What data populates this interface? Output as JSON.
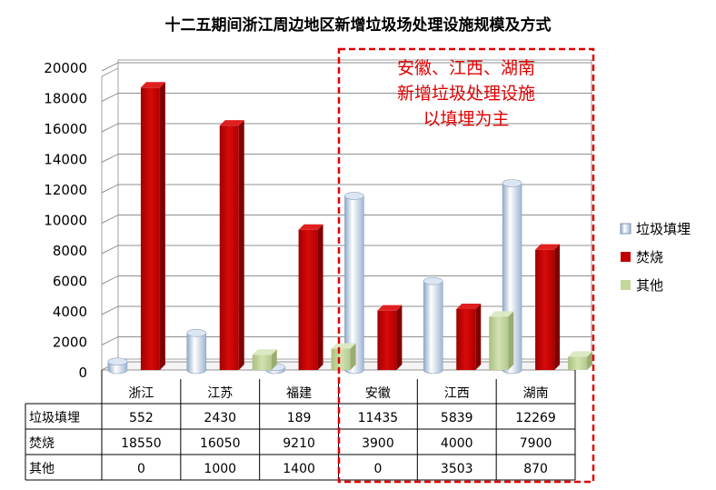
{
  "chart_data": {
    "type": "bar",
    "title": "十二五期间浙江周边地区新增垃圾场处理设施规模及方式",
    "categories": [
      "浙江",
      "江苏",
      "福建",
      "安徽",
      "江西",
      "湖南"
    ],
    "series": [
      {
        "name": "垃圾填埋",
        "values": [
          552,
          2430,
          189,
          11435,
          5839,
          12269
        ],
        "color": "#b8cce4",
        "shape": "cylinder"
      },
      {
        "name": "焚烧",
        "values": [
          18550,
          16050,
          9210,
          3900,
          4000,
          7900
        ],
        "color": "#c00000",
        "shape": "box"
      },
      {
        "name": "其他",
        "values": [
          0,
          1000,
          1400,
          0,
          3503,
          870
        ],
        "color": "#c4d79b",
        "shape": "box"
      }
    ],
    "ylim": [
      0,
      20000
    ],
    "yticks": [
      "0",
      "2000",
      "4000",
      "6000",
      "8000",
      "10000",
      "12000",
      "14000",
      "16000",
      "18000",
      "20000"
    ],
    "table_rows": [
      {
        "label": "垃圾填埋",
        "cells": [
          "552",
          "2430",
          "189",
          "11435",
          "5839",
          "12269"
        ]
      },
      {
        "label": "焚烧",
        "cells": [
          "18550",
          "16050",
          "9210",
          "3900",
          "4000",
          "7900"
        ]
      },
      {
        "label": "其他",
        "cells": [
          "0",
          "1000",
          "1400",
          "0",
          "3503",
          "870"
        ]
      }
    ],
    "legend_position": "right",
    "grid": true,
    "annotation": {
      "lines": [
        "安徽、江西、湖南",
        "新增垃圾处理设施",
        "以填埋为主"
      ],
      "color": "#e00000",
      "covers_categories": [
        "安徽",
        "江西",
        "湖南"
      ]
    }
  }
}
